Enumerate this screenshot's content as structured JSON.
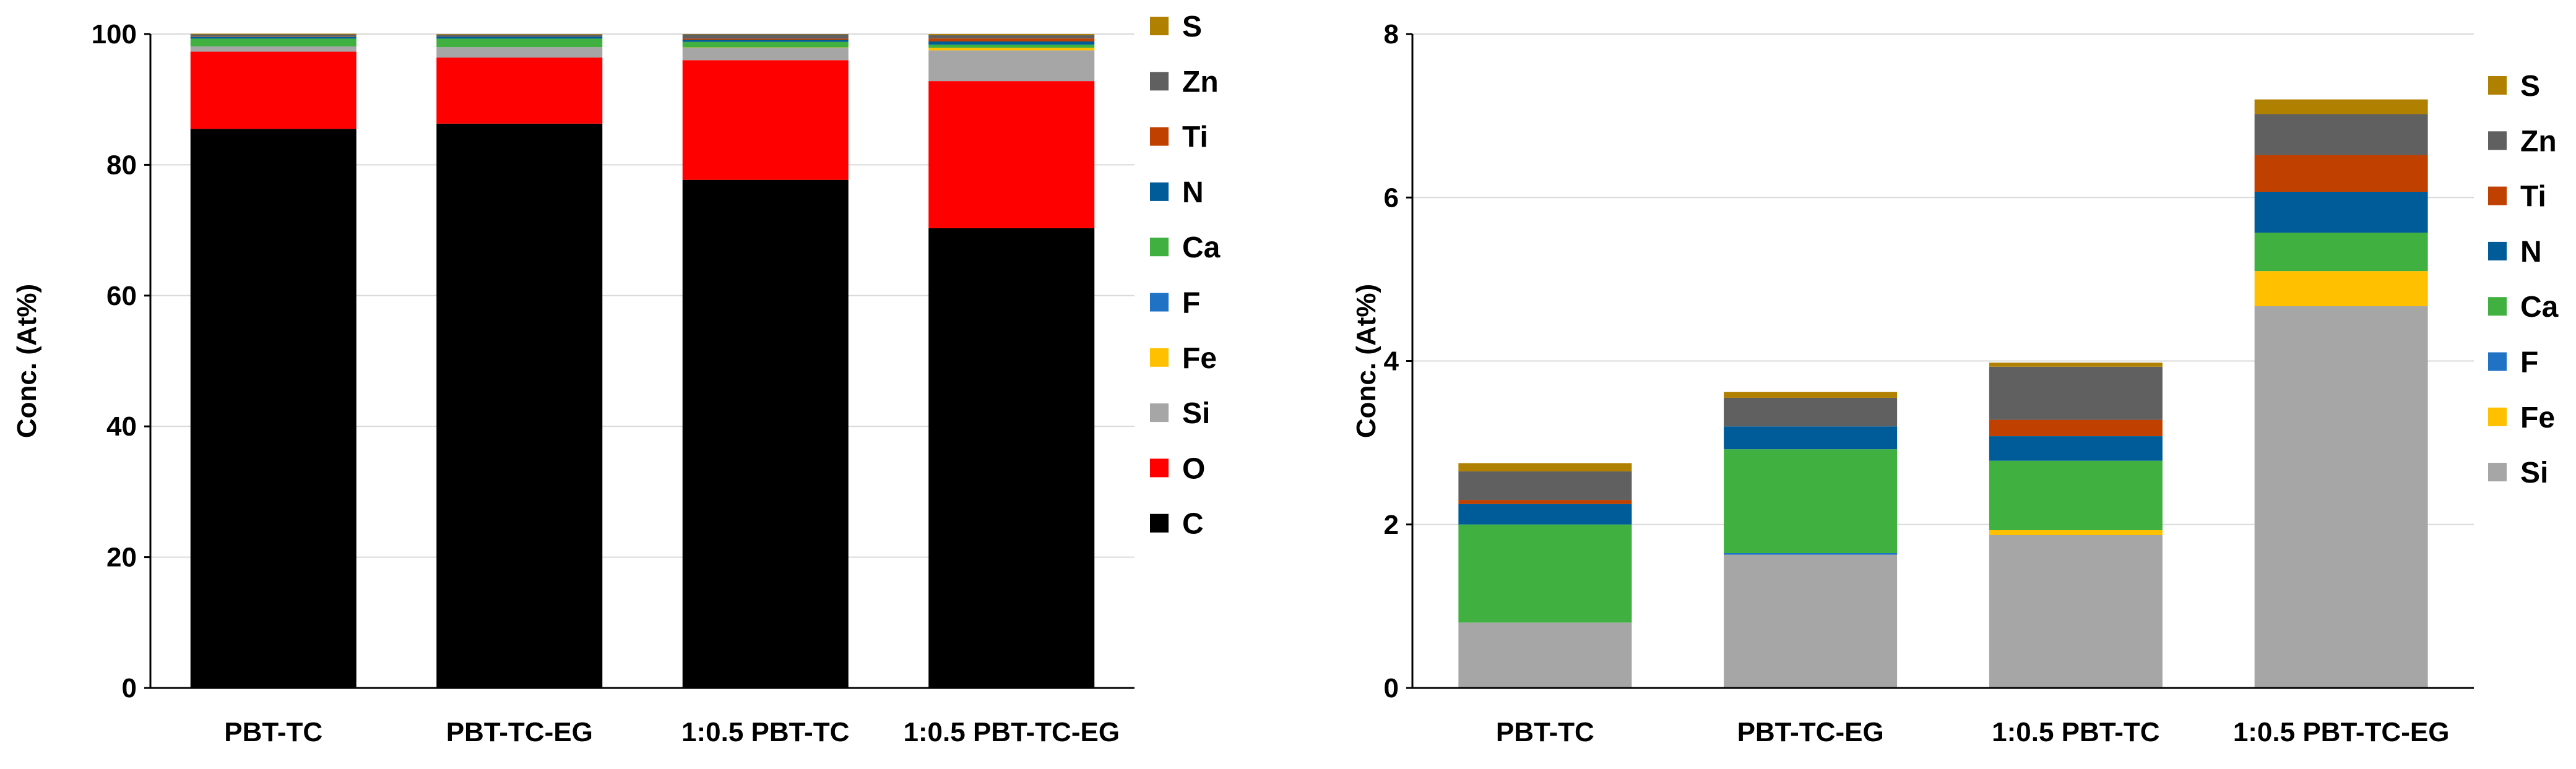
{
  "chart_data": [
    {
      "type": "bar",
      "stacked": true,
      "title": "",
      "xlabel": "",
      "ylabel": "Conc. (At%)",
      "ylim": [
        0,
        100
      ],
      "yticks": [
        0,
        20,
        40,
        60,
        80,
        100
      ],
      "grid": true,
      "legend_position": "right",
      "categories": [
        "PBT-TC",
        "PBT-TC-EG",
        "1:0.5 PBT-TC",
        "1:0.5 PBT-TC-EG"
      ],
      "series": [
        {
          "name": "C",
          "color": "#000000",
          "values": [
            85.5,
            86.3,
            77.7,
            70.3
          ]
        },
        {
          "name": "O",
          "color": "#ff0000",
          "values": [
            11.8,
            10.1,
            18.3,
            22.5
          ]
        },
        {
          "name": "Si",
          "color": "#a6a6a6",
          "values": [
            0.8,
            1.6,
            1.9,
            4.7
          ]
        },
        {
          "name": "Fe",
          "color": "#ffc000",
          "values": [
            0.0,
            0.0,
            0.05,
            0.4
          ]
        },
        {
          "name": "F",
          "color": "#1f72c4",
          "values": [
            0.0,
            0.0,
            0.0,
            0.0
          ]
        },
        {
          "name": "Ca",
          "color": "#40b040",
          "values": [
            1.2,
            1.3,
            0.85,
            0.47
          ]
        },
        {
          "name": "N",
          "color": "#005c99",
          "values": [
            0.25,
            0.28,
            0.3,
            0.5
          ]
        },
        {
          "name": "Ti",
          "color": "#c04000",
          "values": [
            0.05,
            0.0,
            0.2,
            0.45
          ]
        },
        {
          "name": "Zn",
          "color": "#606060",
          "values": [
            0.35,
            0.35,
            0.65,
            0.5
          ]
        },
        {
          "name": "S",
          "color": "#b08000",
          "values": [
            0.1,
            0.07,
            0.05,
            0.18
          ]
        }
      ],
      "legend_order": [
        "S",
        "Zn",
        "Ti",
        "N",
        "Ca",
        "F",
        "Fe",
        "Si",
        "O",
        "C"
      ]
    },
    {
      "type": "bar",
      "stacked": true,
      "title": "",
      "xlabel": "",
      "ylabel": "Conc. (At%)",
      "ylim": [
        0,
        8
      ],
      "yticks": [
        0,
        2,
        4,
        6,
        8
      ],
      "grid": true,
      "legend_position": "right",
      "categories": [
        "PBT-TC",
        "PBT-TC-EG",
        "1:0.5 PBT-TC",
        "1:0.5 PBT-TC-EG"
      ],
      "series": [
        {
          "name": "Si",
          "color": "#a6a6a6",
          "values": [
            0.8,
            1.63,
            1.87,
            4.67
          ]
        },
        {
          "name": "Fe",
          "color": "#ffc000",
          "values": [
            0.0,
            0.0,
            0.06,
            0.43
          ]
        },
        {
          "name": "F",
          "color": "#1f72c4",
          "values": [
            0.0,
            0.02,
            0.0,
            0.0
          ]
        },
        {
          "name": "Ca",
          "color": "#40b040",
          "values": [
            1.2,
            1.27,
            0.85,
            0.47
          ]
        },
        {
          "name": "N",
          "color": "#005c99",
          "values": [
            0.25,
            0.28,
            0.3,
            0.5
          ]
        },
        {
          "name": "Ti",
          "color": "#c04000",
          "values": [
            0.05,
            0.0,
            0.2,
            0.45
          ]
        },
        {
          "name": "Zn",
          "color": "#606060",
          "values": [
            0.35,
            0.35,
            0.65,
            0.5
          ]
        },
        {
          "name": "S",
          "color": "#b08000",
          "values": [
            0.1,
            0.07,
            0.05,
            0.18
          ]
        }
      ],
      "legend_order": [
        "S",
        "Zn",
        "Ti",
        "N",
        "Ca",
        "F",
        "Fe",
        "Si"
      ]
    }
  ]
}
